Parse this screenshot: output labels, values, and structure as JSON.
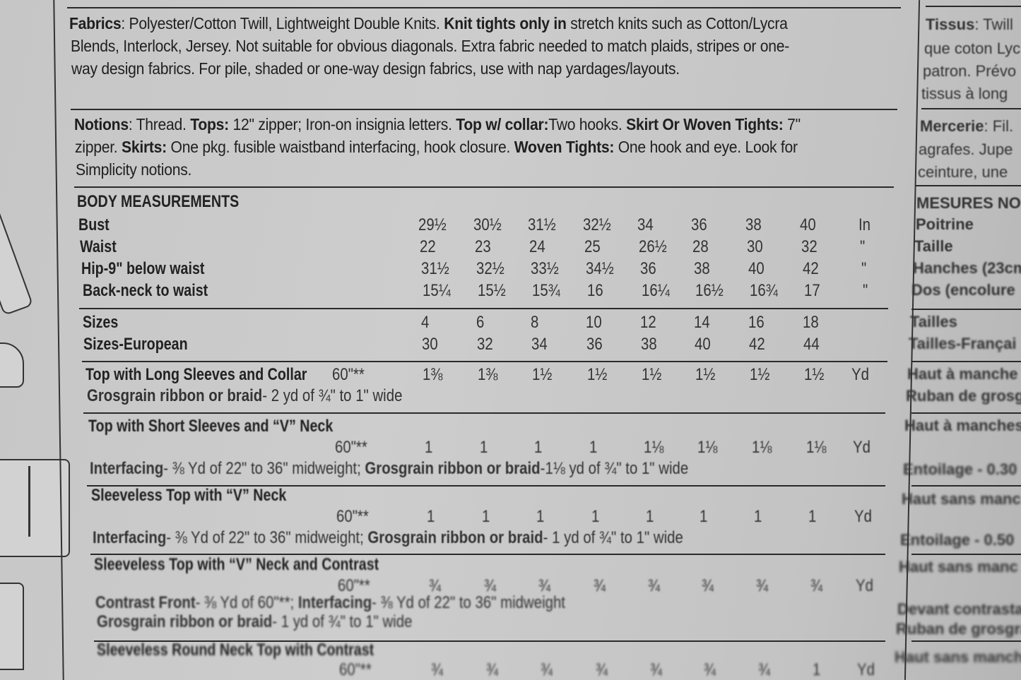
{
  "fabrics": {
    "label": "Fabrics",
    "line1a": ": Polyester/Cotton Twill, Lightweight Double Knits. ",
    "line1b": "Knit tights only in",
    "line1c": " stretch knits such as Cotton/Lycra",
    "line2": "Blends, Interlock, Jersey. Not suitable for obvious diagonals. Extra fabric needed to match plaids, stripes or one-",
    "line3": "way design fabrics. For pile, shaded or one-way design fabrics, use with nap yardages/layouts."
  },
  "notions": {
    "label": "Notions",
    "l1": [
      ": Thread. ",
      "Tops:",
      " 12\" zipper; Iron-on insignia letters. ",
      "Top w/ collar:",
      "Two hooks. ",
      "Skirt Or Woven Tights:",
      " 7\""
    ],
    "l2": [
      "zipper. ",
      "Skirts:",
      " One pkg. fusible waistband interfacing, hook closure. ",
      "Woven Tights:",
      " One hook and eye. Look for"
    ],
    "l3": "Simplicity notions."
  },
  "body_measurements": {
    "heading": "BODY MEASUREMENTS",
    "rows": [
      {
        "label": "Bust",
        "values": [
          "29½",
          "30½",
          "31½",
          "32½",
          "34",
          "36",
          "38",
          "40"
        ],
        "unit": "In"
      },
      {
        "label": "Waist",
        "values": [
          "22",
          "23",
          "24",
          "25",
          "26½",
          "28",
          "30",
          "32"
        ],
        "unit": "\""
      },
      {
        "label": "Hip-9\" below waist",
        "values": [
          "31½",
          "32½",
          "33½",
          "34½",
          "36",
          "38",
          "40",
          "42"
        ],
        "unit": "\""
      },
      {
        "label": "Back-neck to waist",
        "values": [
          "15¼",
          "15½",
          "15¾",
          "16",
          "16¼",
          "16½",
          "16¾",
          "17"
        ],
        "unit": "\""
      }
    ]
  },
  "sizes": [
    {
      "label": "Sizes",
      "values": [
        "4",
        "6",
        "8",
        "10",
        "12",
        "14",
        "16",
        "18"
      ]
    },
    {
      "label": "Sizes-European",
      "values": [
        "30",
        "32",
        "34",
        "36",
        "38",
        "40",
        "42",
        "44"
      ]
    }
  ],
  "views": [
    {
      "title": "Top with Long Sleeves and Collar",
      "width": "60\"**",
      "values": [
        "1⅜",
        "1⅜",
        "1½",
        "1½",
        "1½",
        "1½",
        "1½",
        "1½"
      ],
      "unit": "Yd",
      "notes": [
        [
          [
            "Grosgrain ribbon or braid",
            true
          ],
          [
            "- 2 yd of ¾\" to 1\" wide",
            false
          ]
        ]
      ]
    },
    {
      "title": "Top with Short Sleeves and “V” Neck",
      "width": "60\"**",
      "values": [
        "1",
        "1",
        "1",
        "1",
        "1⅛",
        "1⅛",
        "1⅛",
        "1⅛"
      ],
      "unit": "Yd",
      "notes": [
        [
          [
            "Interfacing",
            true
          ],
          [
            "- ⅜ Yd of 22\" to 36\" midweight; ",
            false
          ],
          [
            "Grosgrain ribbon or braid",
            true
          ],
          [
            "-1⅛ yd of ¾\" to 1\" wide",
            false
          ]
        ]
      ]
    },
    {
      "title": "Sleeveless Top with “V” Neck",
      "width": "60\"**",
      "values": [
        "1",
        "1",
        "1",
        "1",
        "1",
        "1",
        "1",
        "1"
      ],
      "unit": "Yd",
      "notes": [
        [
          [
            "Interfacing",
            true
          ],
          [
            "- ⅜ Yd of 22\" to 36\" midweight; ",
            false
          ],
          [
            "Grosgrain ribbon or braid",
            true
          ],
          [
            "- 1 yd of ¾\" to 1\" wide",
            false
          ]
        ]
      ]
    },
    {
      "title": "Sleeveless Top with “V” Neck and Contrast",
      "width": "60\"**",
      "values": [
        "¾",
        "¾",
        "¾",
        "¾",
        "¾",
        "¾",
        "¾",
        "¾"
      ],
      "unit": "Yd",
      "notes": [
        [
          [
            "Contrast Front",
            true
          ],
          [
            "- ⅜ Yd of 60\"**; ",
            false
          ],
          [
            "Interfacing",
            true
          ],
          [
            "- ⅜ Yd of 22\" to 36\" midweight",
            false
          ]
        ],
        [
          [
            "Grosgrain ribbon or braid",
            true
          ],
          [
            "- 1 yd of ¾\" to 1\" wide",
            false
          ]
        ]
      ]
    },
    {
      "title": "Sleeveless Round Neck Top with Contrast",
      "width": "60\"**",
      "values": [
        "¾",
        "¾",
        "¾",
        "¾",
        "¾",
        "¾",
        "¾",
        "1"
      ],
      "unit": "Yd",
      "notes": []
    }
  ],
  "french": {
    "tissus_label": "Tissus",
    "tissus": [
      ": Twill",
      "que coton Lyc",
      "patron. Prévo",
      "tissus à long"
    ],
    "mercerie_label": "Mercerie",
    "mercerie": [
      ": Fil.",
      "agrafes. Jupe",
      "ceinture, une"
    ],
    "mesures": "MESURES NOR",
    "rows": [
      "Poitrine",
      "Taille",
      "Hanches (23cm",
      "Dos (encolure",
      "Tailles",
      "Tailles-Françai",
      "Haut à manche",
      "Ruban de grosg",
      "Haut à manches",
      "Entoilage - 0.30",
      "Haut sans manc",
      "Entoilage - 0.50",
      "Haut sans manc",
      "Devant contrastan",
      "Ruban de grosgra",
      "Haut sans manche"
    ]
  }
}
